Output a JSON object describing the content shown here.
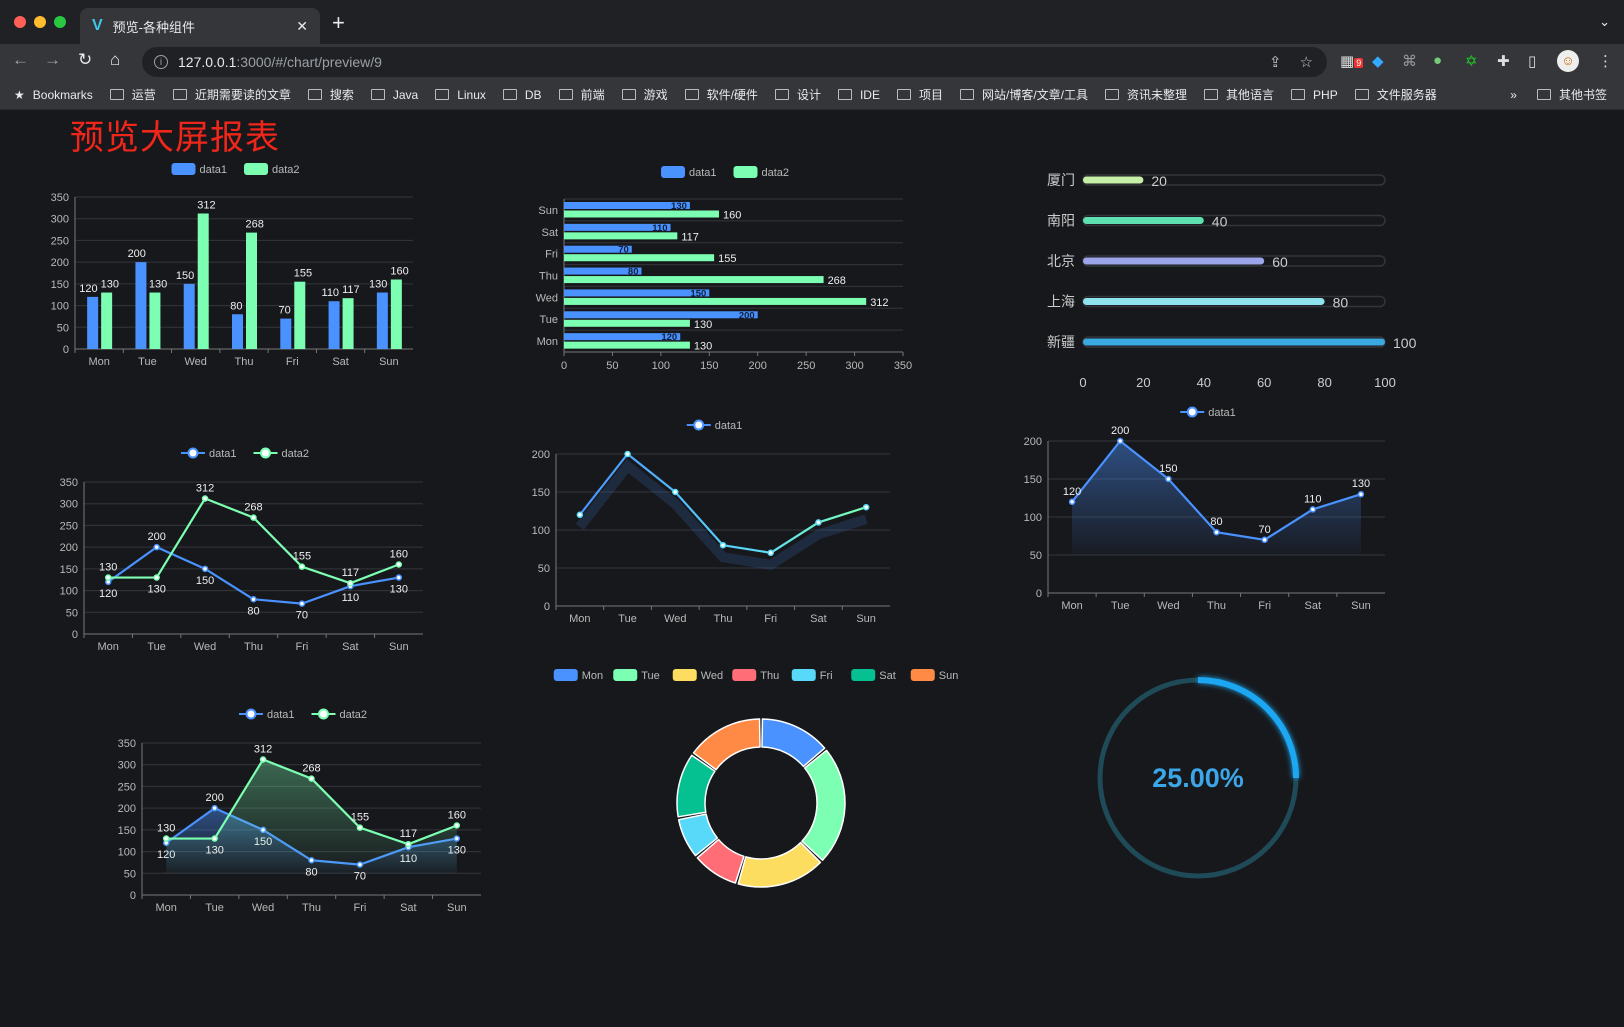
{
  "browser": {
    "tab_title": "预览-各种组件",
    "url_host": "127.0.0.1",
    "url_rest": ":3000/#/chart/preview/9",
    "extension_badge": "9",
    "bookmarks_label": "Bookmarks",
    "bookmarks": [
      "运营",
      "近期需要读的文章",
      "搜索",
      "Java",
      "Linux",
      "DB",
      "前端",
      "游戏",
      "软件/硬件",
      "设计",
      "IDE",
      "项目",
      "网站/博客/文章/工具",
      "资讯未整理",
      "其他语言",
      "PHP",
      "文件服务器"
    ],
    "more": "»",
    "other_bookmarks": "其他书签"
  },
  "page": {
    "title": "预览大屏报表"
  },
  "colors": {
    "data1": "#4992ff",
    "data2": "#7cffb2",
    "title": "#f0261a",
    "gauge": "#1ea7f2"
  },
  "chart_data": [
    {
      "id": "bar",
      "type": "bar",
      "categories": [
        "Mon",
        "Tue",
        "Wed",
        "Thu",
        "Fri",
        "Sat",
        "Sun"
      ],
      "series": [
        {
          "name": "data1",
          "values": [
            120,
            200,
            150,
            80,
            70,
            110,
            130
          ]
        },
        {
          "name": "data2",
          "values": [
            130,
            130,
            312,
            268,
            155,
            117,
            160
          ]
        }
      ],
      "ylim": [
        0,
        350
      ],
      "yticks": [
        0,
        50,
        100,
        150,
        200,
        250,
        300,
        350
      ],
      "legend": "top"
    },
    {
      "id": "hbar",
      "type": "bar",
      "orientation": "horizontal",
      "categories": [
        "Mon",
        "Tue",
        "Wed",
        "Thu",
        "Fri",
        "Sat",
        "Sun"
      ],
      "series": [
        {
          "name": "data1",
          "values": [
            120,
            200,
            150,
            80,
            70,
            110,
            130
          ]
        },
        {
          "name": "data2",
          "values": [
            130,
            130,
            312,
            268,
            155,
            117,
            160
          ]
        }
      ],
      "xlim": [
        0,
        350
      ],
      "xticks": [
        0,
        50,
        100,
        150,
        200,
        250,
        300,
        350
      ],
      "legend": "top"
    },
    {
      "id": "progress",
      "type": "bar",
      "orientation": "horizontal",
      "categories": [
        "厦门",
        "南阳",
        "北京",
        "上海",
        "新疆"
      ],
      "values": [
        20,
        40,
        60,
        80,
        100
      ],
      "colors": [
        "#c6eea6",
        "#5fe0b0",
        "#9da5ea",
        "#8fe3ec",
        "#39a9e0"
      ],
      "xlim": [
        0,
        100
      ],
      "xticks": [
        0,
        20,
        40,
        60,
        80,
        100
      ]
    },
    {
      "id": "line2",
      "type": "line",
      "categories": [
        "Mon",
        "Tue",
        "Wed",
        "Thu",
        "Fri",
        "Sat",
        "Sun"
      ],
      "series": [
        {
          "name": "data1",
          "values": [
            120,
            200,
            150,
            80,
            70,
            110,
            130
          ]
        },
        {
          "name": "data2",
          "values": [
            130,
            130,
            312,
            268,
            155,
            117,
            160
          ]
        }
      ],
      "ylim": [
        0,
        350
      ],
      "yticks": [
        0,
        50,
        100,
        150,
        200,
        250,
        300,
        350
      ],
      "legend": "top"
    },
    {
      "id": "line1",
      "type": "line",
      "categories": [
        "Mon",
        "Tue",
        "Wed",
        "Thu",
        "Fri",
        "Sat",
        "Sun"
      ],
      "series": [
        {
          "name": "data1",
          "values": [
            120,
            200,
            150,
            80,
            70,
            110,
            130
          ]
        }
      ],
      "ylim": [
        0,
        200
      ],
      "yticks": [
        0,
        50,
        100,
        150,
        200
      ],
      "legend": "top"
    },
    {
      "id": "area1",
      "type": "area",
      "categories": [
        "Mon",
        "Tue",
        "Wed",
        "Thu",
        "Fri",
        "Sat",
        "Sun"
      ],
      "series": [
        {
          "name": "data1",
          "values": [
            120,
            200,
            150,
            80,
            70,
            110,
            130
          ]
        }
      ],
      "ylim": [
        0,
        200
      ],
      "yticks": [
        0,
        50,
        100,
        150,
        200
      ],
      "legend": "top"
    },
    {
      "id": "donut",
      "type": "pie",
      "categories": [
        "Mon",
        "Tue",
        "Wed",
        "Thu",
        "Fri",
        "Sat",
        "Sun"
      ],
      "values": [
        120,
        200,
        150,
        80,
        70,
        110,
        130
      ],
      "colors": [
        "#4992ff",
        "#7cffb2",
        "#fddd60",
        "#ff6e76",
        "#58d9f9",
        "#05c091",
        "#ff8a45"
      ],
      "legend": "top"
    },
    {
      "id": "gauge",
      "type": "gauge",
      "value": 25,
      "label": "25.00%"
    },
    {
      "id": "area2",
      "type": "area",
      "categories": [
        "Mon",
        "Tue",
        "Wed",
        "Thu",
        "Fri",
        "Sat",
        "Sun"
      ],
      "series": [
        {
          "name": "data1",
          "values": [
            120,
            200,
            150,
            80,
            70,
            110,
            130
          ]
        },
        {
          "name": "data2",
          "values": [
            130,
            130,
            312,
            268,
            155,
            117,
            160
          ]
        }
      ],
      "ylim": [
        0,
        350
      ],
      "yticks": [
        0,
        50,
        100,
        150,
        200,
        250,
        300,
        350
      ],
      "legend": "top"
    }
  ]
}
